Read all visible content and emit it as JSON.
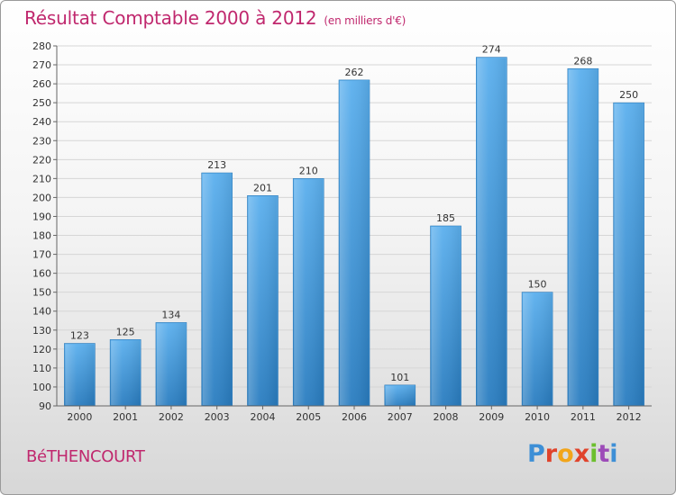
{
  "page": {
    "commune": "BéTHENCOURT",
    "logo_text": "Proxiti"
  },
  "chart_data": {
    "type": "bar",
    "title": "Résultat Comptable 2000 à 2012",
    "subtitle": "(en milliers d'€)",
    "categories": [
      "2000",
      "2001",
      "2002",
      "2003",
      "2004",
      "2005",
      "2006",
      "2007",
      "2008",
      "2009",
      "2010",
      "2011",
      "2012"
    ],
    "values": [
      123,
      125,
      134,
      213,
      201,
      210,
      262,
      101,
      185,
      274,
      150,
      268,
      250
    ],
    "ylim": [
      90,
      280
    ],
    "ytick_step": 10,
    "xlabel": "",
    "ylabel": "",
    "grid": true,
    "bar_color": "#3a94d8",
    "title_color": "#c0286e"
  }
}
